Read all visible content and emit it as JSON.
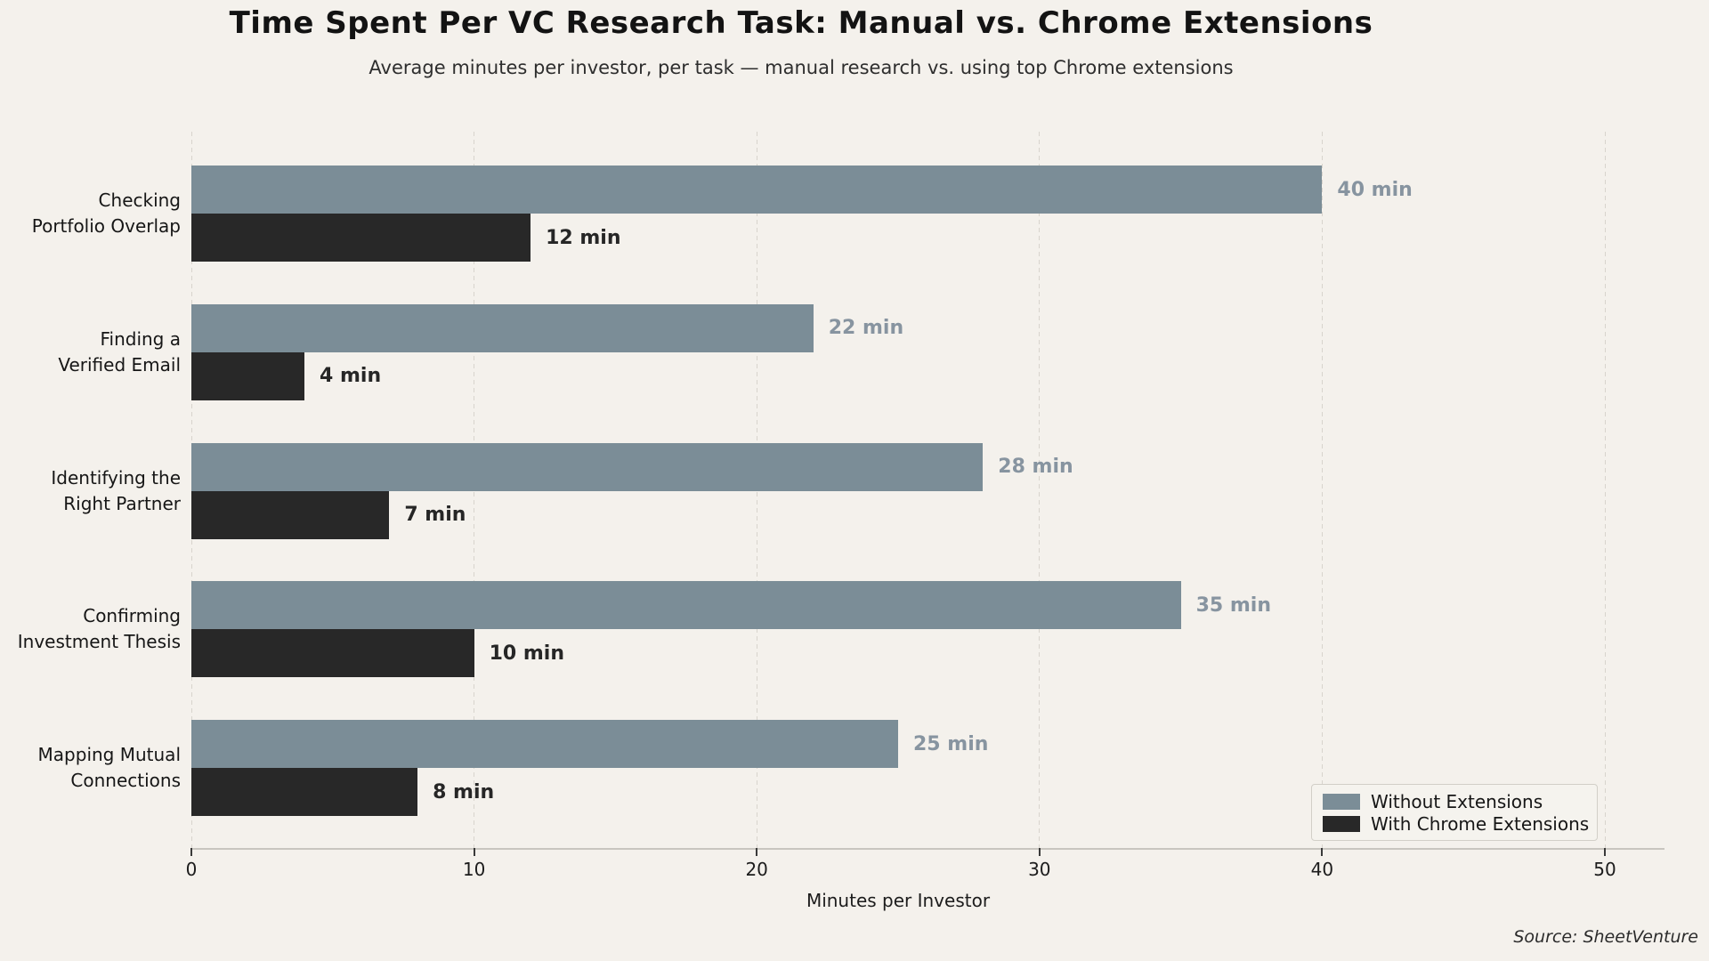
{
  "chart_data": {
    "type": "bar",
    "orientation": "horizontal",
    "title": "Time Spent Per VC Research Task: Manual vs. Chrome Extensions",
    "subtitle": "Average minutes per investor, per task — manual research vs. using top Chrome extensions",
    "categories": [
      [
        "Checking",
        "Portfolio Overlap"
      ],
      [
        "Finding a",
        "Verified Email"
      ],
      [
        "Identifying the",
        "Right Partner"
      ],
      [
        "Confirming",
        "Investment Thesis"
      ],
      [
        "Mapping Mutual",
        "Connections"
      ]
    ],
    "series": [
      {
        "name": "Without Extensions",
        "color": "#7b8d97",
        "label_color": "#8794a0",
        "values": [
          40,
          22,
          28,
          35,
          25
        ],
        "value_labels": [
          "40 min",
          "22 min",
          "28 min",
          "35 min",
          "25 min"
        ]
      },
      {
        "name": "With Chrome Extensions",
        "color": "#282828",
        "label_color": "#262626",
        "values": [
          12,
          4,
          7,
          10,
          8
        ],
        "value_labels": [
          "12 min",
          "4 min",
          "7 min",
          "10 min",
          "8 min"
        ]
      }
    ],
    "xlabel": "Minutes per Investor",
    "xlim": [
      0,
      52.1
    ],
    "xticks": [
      0,
      10,
      20,
      30,
      40,
      50
    ],
    "xtick_labels": [
      "0",
      "10",
      "20",
      "30",
      "40",
      "50"
    ],
    "grid": "vertical-dashed",
    "legend_position": "lower-right",
    "source": "Source: SheetVenture",
    "colors": {
      "background": "#f4f1ec",
      "gridline": "#d8d4cd",
      "axis_line": "#c8c5bf"
    }
  }
}
